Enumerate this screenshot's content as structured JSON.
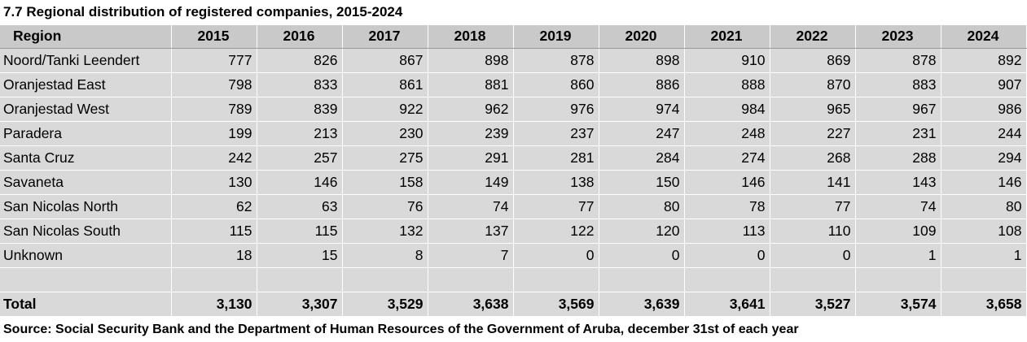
{
  "title": "7.7 Regional distribution of registered companies, 2015-2024",
  "header": {
    "region_label": "Region",
    "years": [
      "2015",
      "2016",
      "2017",
      "2018",
      "2019",
      "2020",
      "2021",
      "2022",
      "2023",
      "2024"
    ]
  },
  "rows": [
    {
      "region": "Noord/Tanki Leendert",
      "values": [
        "777",
        "826",
        "867",
        "898",
        "878",
        "898",
        "910",
        "869",
        "878",
        "892"
      ]
    },
    {
      "region": "Oranjestad East",
      "values": [
        "798",
        "833",
        "861",
        "881",
        "860",
        "886",
        "888",
        "870",
        "883",
        "907"
      ]
    },
    {
      "region": "Oranjestad West",
      "values": [
        "789",
        "839",
        "922",
        "962",
        "976",
        "974",
        "984",
        "965",
        "967",
        "986"
      ]
    },
    {
      "region": "Paradera",
      "values": [
        "199",
        "213",
        "230",
        "239",
        "237",
        "247",
        "248",
        "227",
        "231",
        "244"
      ]
    },
    {
      "region": "Santa Cruz",
      "values": [
        "242",
        "257",
        "275",
        "291",
        "281",
        "284",
        "274",
        "268",
        "288",
        "294"
      ]
    },
    {
      "region": "Savaneta",
      "values": [
        "130",
        "146",
        "158",
        "149",
        "138",
        "150",
        "146",
        "141",
        "143",
        "146"
      ]
    },
    {
      "region": "San Nicolas North",
      "values": [
        "62",
        "63",
        "76",
        "74",
        "77",
        "80",
        "78",
        "77",
        "74",
        "80"
      ]
    },
    {
      "region": "San Nicolas South",
      "values": [
        "115",
        "115",
        "132",
        "137",
        "122",
        "120",
        "113",
        "110",
        "109",
        "108"
      ]
    },
    {
      "region": "Unknown",
      "values": [
        "18",
        "15",
        "8",
        "7",
        "0",
        "0",
        "0",
        "0",
        "1",
        "1"
      ]
    }
  ],
  "total": {
    "label": "Total",
    "values": [
      "3,130",
      "3,307",
      "3,529",
      "3,638",
      "3,569",
      "3,639",
      "3,641",
      "3,527",
      "3,574",
      "3,658"
    ]
  },
  "source": "Source: Social Security Bank and the Department of Human Resources of the Government of Aruba, december 31st of each year"
}
